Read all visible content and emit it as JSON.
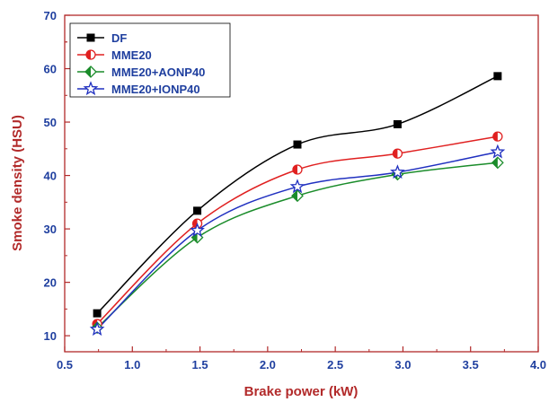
{
  "chart_data": {
    "type": "line",
    "title": "",
    "xlabel": "Brake power (kW)",
    "ylabel": "Smoke density (HSU)",
    "xlim": [
      0.5,
      4.0
    ],
    "ylim": [
      7,
      70
    ],
    "xticks": [
      0.5,
      1.0,
      1.5,
      2.0,
      2.5,
      3.0,
      3.5,
      4.0
    ],
    "xtick_labels": [
      "0.5",
      "1.0",
      "1.5",
      "2.0",
      "2.5",
      "3.0",
      "3.5",
      "4.0"
    ],
    "yticks": [
      10,
      20,
      30,
      40,
      50,
      60,
      70
    ],
    "ytick_labels": [
      "10",
      "20",
      "30",
      "40",
      "50",
      "60",
      "70"
    ],
    "grid": false,
    "smooth": true,
    "legend_position": "top-left",
    "x": [
      0.74,
      1.48,
      2.22,
      2.96,
      3.7
    ],
    "series": [
      {
        "name": "DF",
        "color": "#000000",
        "marker": "square",
        "values": [
          14.2,
          33.4,
          45.8,
          49.6,
          58.6
        ]
      },
      {
        "name": "MME20",
        "color": "#e02020",
        "marker": "half-circle",
        "values": [
          12.2,
          31.0,
          41.1,
          44.1,
          47.3
        ]
      },
      {
        "name": "MME20+AONP40",
        "color": "#1a8c2a",
        "marker": "half-diamond",
        "values": [
          11.5,
          28.4,
          36.2,
          40.2,
          42.4
        ]
      },
      {
        "name": "MME20+IONP40",
        "color": "#2030c0",
        "marker": "star",
        "values": [
          11.2,
          29.7,
          37.9,
          40.6,
          44.4
        ]
      }
    ]
  }
}
